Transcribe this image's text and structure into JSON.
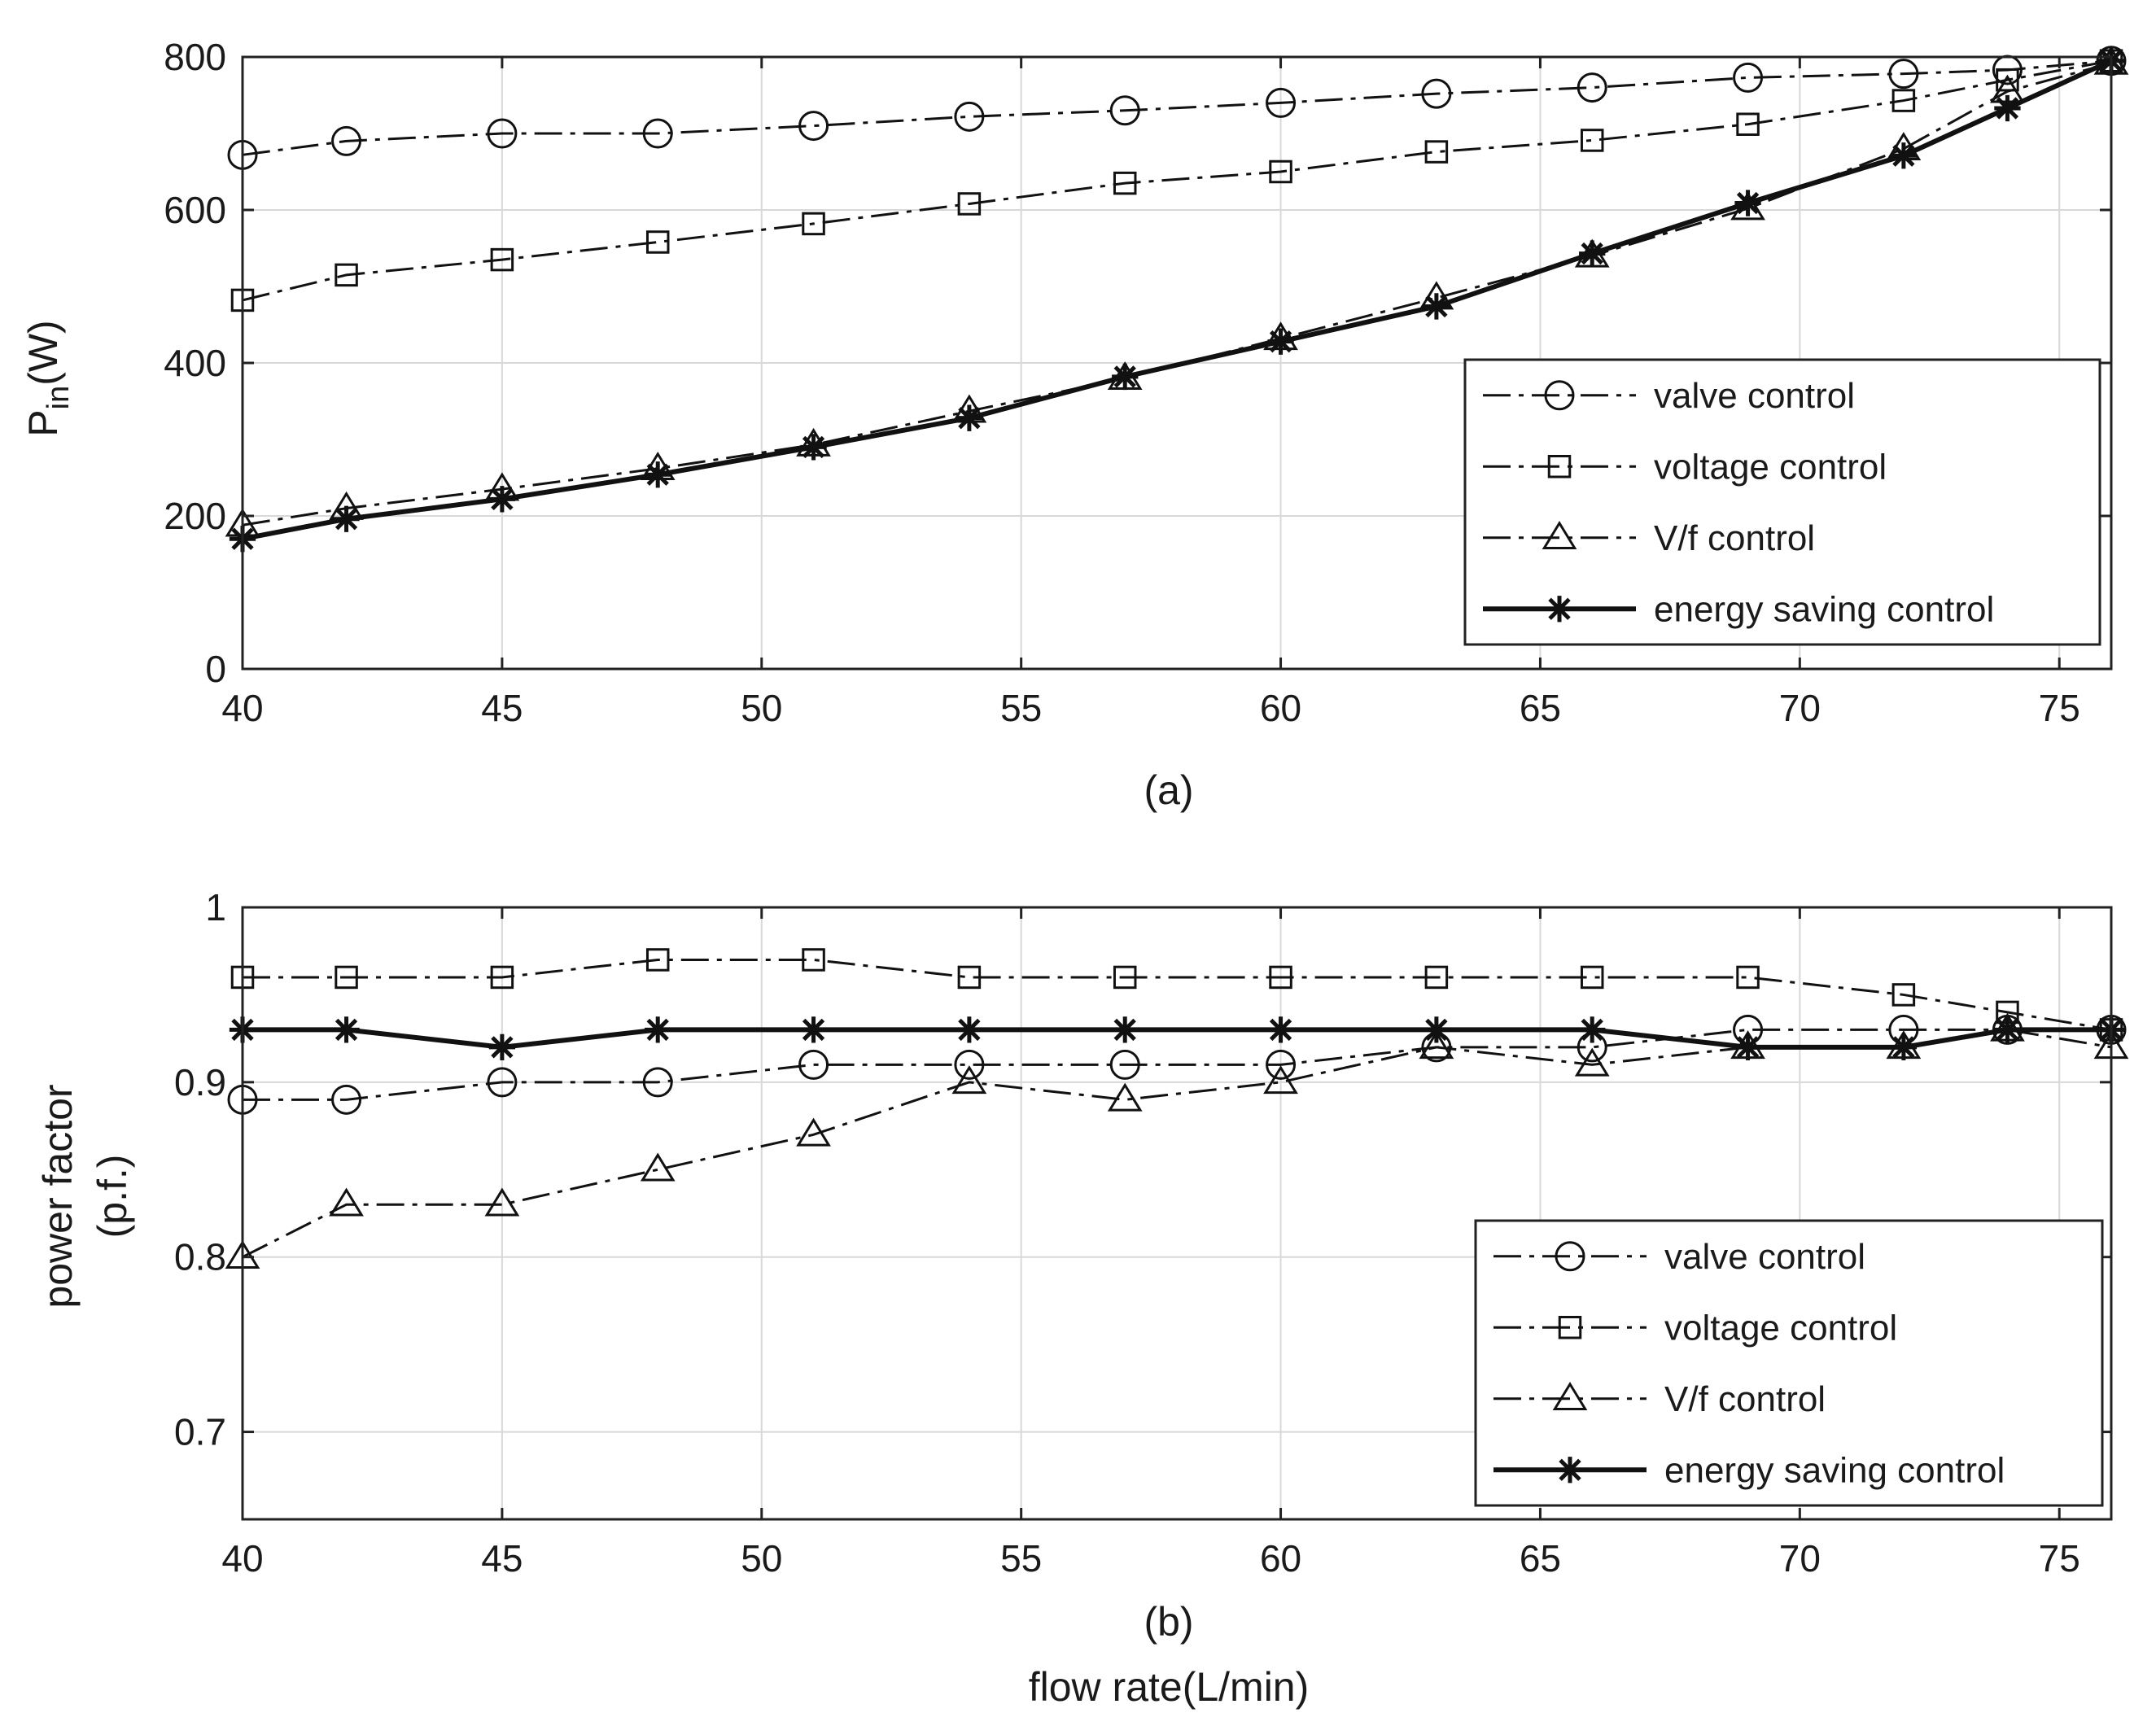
{
  "chart_data": [
    {
      "type": "line",
      "subtitle": "(a)",
      "xlabel": "",
      "ylabel_main": "P",
      "ylabel_sub": "in",
      "ylabel_unit": "(W)",
      "xlim": [
        40,
        76
      ],
      "ylim": [
        0,
        800
      ],
      "xticks": [
        40,
        45,
        50,
        55,
        60,
        65,
        70,
        75
      ],
      "yticks": [
        0,
        200,
        400,
        600,
        800
      ],
      "ytick_labels": [
        "0",
        "200",
        "400",
        "600",
        "800"
      ],
      "grid": true,
      "legend_position": "lower-right",
      "series": [
        {
          "name": "valve control",
          "marker": "circle",
          "style": "dashdot",
          "x": [
            40,
            42,
            45,
            48,
            51,
            54,
            57,
            60,
            63,
            66,
            69,
            72,
            74,
            76
          ],
          "y": [
            672,
            690,
            700,
            700,
            710,
            722,
            730,
            740,
            752,
            760,
            773,
            778,
            783,
            795
          ]
        },
        {
          "name": "voltage control",
          "marker": "square",
          "style": "dashdot",
          "x": [
            40,
            42,
            45,
            48,
            51,
            54,
            57,
            60,
            63,
            66,
            69,
            72,
            74,
            76
          ],
          "y": [
            482,
            515,
            535,
            558,
            582,
            608,
            635,
            650,
            676,
            691,
            712,
            743,
            770,
            795
          ]
        },
        {
          "name": "V/f control",
          "marker": "triangle",
          "style": "dashdot",
          "x": [
            40,
            42,
            45,
            48,
            51,
            54,
            57,
            60,
            63,
            66,
            69,
            72,
            74,
            76
          ],
          "y": [
            188,
            210,
            235,
            262,
            293,
            337,
            380,
            432,
            485,
            540,
            602,
            680,
            755,
            792
          ]
        },
        {
          "name": "energy saving control",
          "marker": "asterisk",
          "style": "solid",
          "x": [
            40,
            42,
            45,
            48,
            51,
            54,
            57,
            60,
            63,
            66,
            69,
            72,
            74,
            76
          ],
          "y": [
            170,
            196,
            222,
            254,
            290,
            328,
            382,
            428,
            474,
            543,
            609,
            671,
            733,
            795
          ]
        }
      ]
    },
    {
      "type": "line",
      "subtitle": "(b)",
      "xlabel": "flow rate(L/min)",
      "ylabel_line1": "power factor",
      "ylabel_line2": "(p.f.)",
      "xlim": [
        40,
        76
      ],
      "ylim": [
        0.65,
        1.0
      ],
      "xticks": [
        40,
        45,
        50,
        55,
        60,
        65,
        70,
        75
      ],
      "yticks": [
        0.7,
        0.8,
        0.9,
        1.0
      ],
      "ytick_labels": [
        "0.7",
        "0.8",
        "0.9",
        "1"
      ],
      "grid": true,
      "legend_position": "lower-right",
      "series": [
        {
          "name": "valve control",
          "marker": "circle",
          "style": "dashdot",
          "x": [
            40,
            42,
            45,
            48,
            51,
            54,
            57,
            60,
            63,
            66,
            69,
            72,
            74,
            76
          ],
          "y": [
            0.89,
            0.89,
            0.9,
            0.9,
            0.91,
            0.91,
            0.91,
            0.91,
            0.92,
            0.92,
            0.93,
            0.93,
            0.93,
            0.93
          ]
        },
        {
          "name": "voltage control",
          "marker": "square",
          "style": "dashdot",
          "x": [
            40,
            42,
            45,
            48,
            51,
            54,
            57,
            60,
            63,
            66,
            69,
            72,
            74,
            76
          ],
          "y": [
            0.96,
            0.96,
            0.96,
            0.97,
            0.97,
            0.96,
            0.96,
            0.96,
            0.96,
            0.96,
            0.96,
            0.95,
            0.94,
            0.93
          ]
        },
        {
          "name": "V/f control",
          "marker": "triangle",
          "style": "dashdot",
          "x": [
            40,
            42,
            45,
            48,
            51,
            54,
            57,
            60,
            63,
            66,
            69,
            72,
            74,
            76
          ],
          "y": [
            0.8,
            0.83,
            0.83,
            0.85,
            0.87,
            0.9,
            0.89,
            0.9,
            0.92,
            0.91,
            0.92,
            0.92,
            0.93,
            0.92
          ]
        },
        {
          "name": "energy saving control",
          "marker": "asterisk",
          "style": "solid",
          "x": [
            40,
            42,
            45,
            48,
            51,
            54,
            57,
            60,
            63,
            66,
            69,
            72,
            74,
            76
          ],
          "y": [
            0.93,
            0.93,
            0.92,
            0.93,
            0.93,
            0.93,
            0.93,
            0.93,
            0.93,
            0.93,
            0.92,
            0.92,
            0.93,
            0.93
          ]
        }
      ]
    }
  ]
}
